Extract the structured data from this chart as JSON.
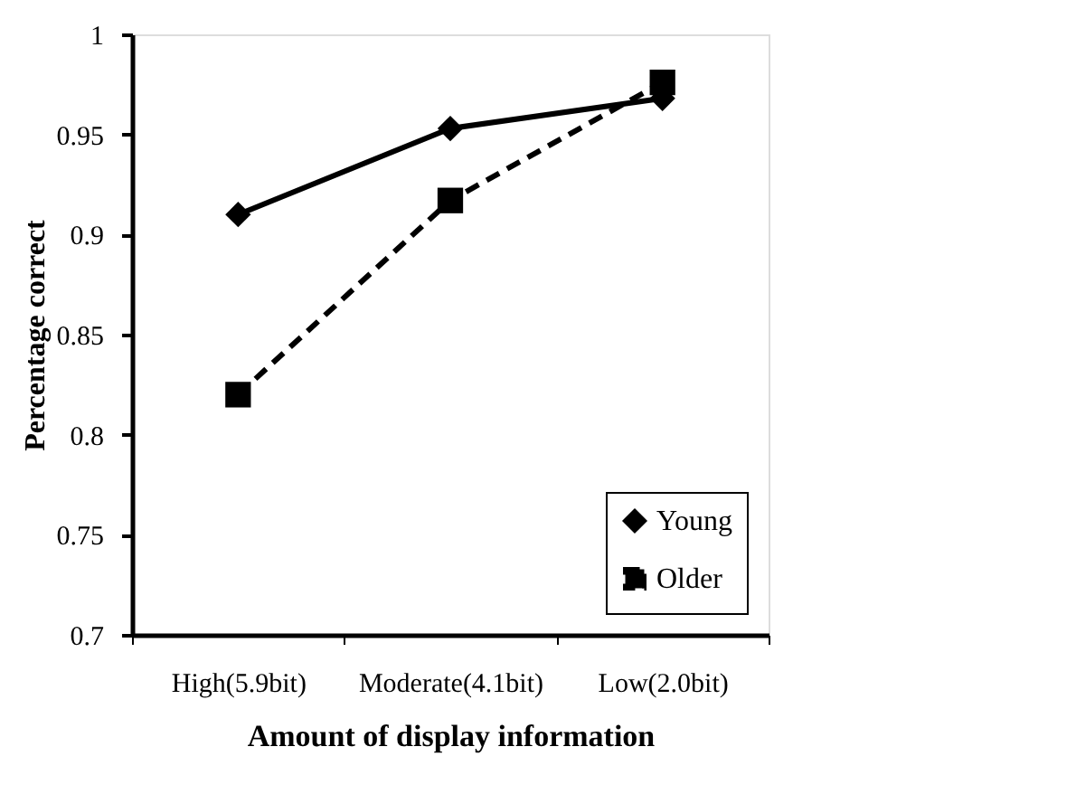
{
  "chart_data": {
    "type": "line",
    "xlabel": "Amount of display information",
    "ylabel": "Percentage correct",
    "categories": [
      "High(5.9bit)",
      "Moderate(4.1bit)",
      "Low(2.0bit)"
    ],
    "series": [
      {
        "name": "Young",
        "color": "#000000",
        "marker": "diamond",
        "line_style": "solid",
        "values": [
          0.91,
          0.953,
          0.968
        ]
      },
      {
        "name": "Older",
        "color": "#000000",
        "marker": "square",
        "line_style": "dashed",
        "values": [
          0.82,
          0.917,
          0.976
        ]
      }
    ],
    "ylim": [
      0.7,
      1
    ],
    "yticks": [
      0.7,
      0.75,
      0.8,
      0.85,
      0.9,
      0.95,
      1
    ],
    "grid": false,
    "legend": "bottom right"
  }
}
